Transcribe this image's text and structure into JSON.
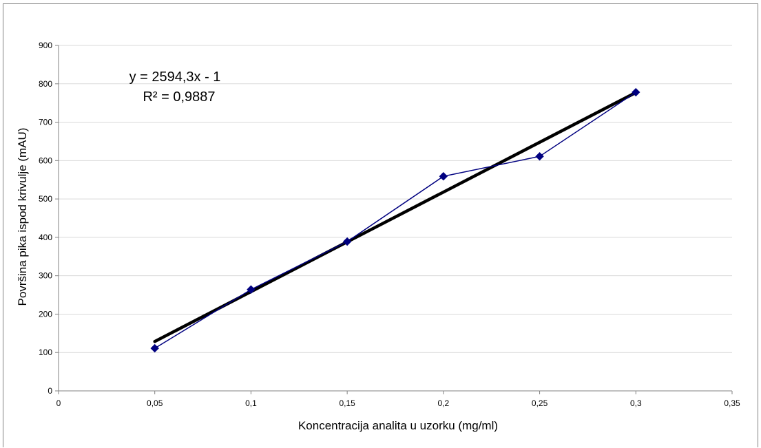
{
  "chart_data": {
    "type": "scatter",
    "title": "",
    "xlabel": "Koncentracija analita u uzorku (mg/ml)",
    "ylabel": "Površina pika ispod krivulje (mAU)",
    "xlim": [
      0,
      0.35
    ],
    "ylim": [
      0,
      900
    ],
    "x_ticks": [
      0,
      0.05,
      0.1,
      0.15,
      0.2,
      0.25,
      0.3,
      0.35
    ],
    "x_tick_labels": [
      "0",
      "0,05",
      "0,1",
      "0,15",
      "0,2",
      "0,25",
      "0,3",
      "0,35"
    ],
    "y_ticks": [
      0,
      100,
      200,
      300,
      400,
      500,
      600,
      700,
      800,
      900
    ],
    "y_tick_labels": [
      "0",
      "100",
      "200",
      "300",
      "400",
      "500",
      "600",
      "700",
      "800",
      "900"
    ],
    "grid": "horizontal",
    "legend": "none",
    "series": [
      {
        "x": [
          0.05,
          0.1,
          0.15,
          0.2,
          0.25,
          0.3
        ],
        "y": [
          111,
          264,
          389,
          559,
          611,
          778
        ],
        "color": "#000080",
        "marker": "diamond",
        "line": true
      }
    ],
    "trendline": {
      "type": "linear",
      "slope": 2594.3,
      "intercept": -1,
      "x_range": [
        0.05,
        0.3
      ],
      "color": "#000000",
      "equation": "y = 2594,3x - 1",
      "r_squared": "R² = 0,9887"
    }
  }
}
